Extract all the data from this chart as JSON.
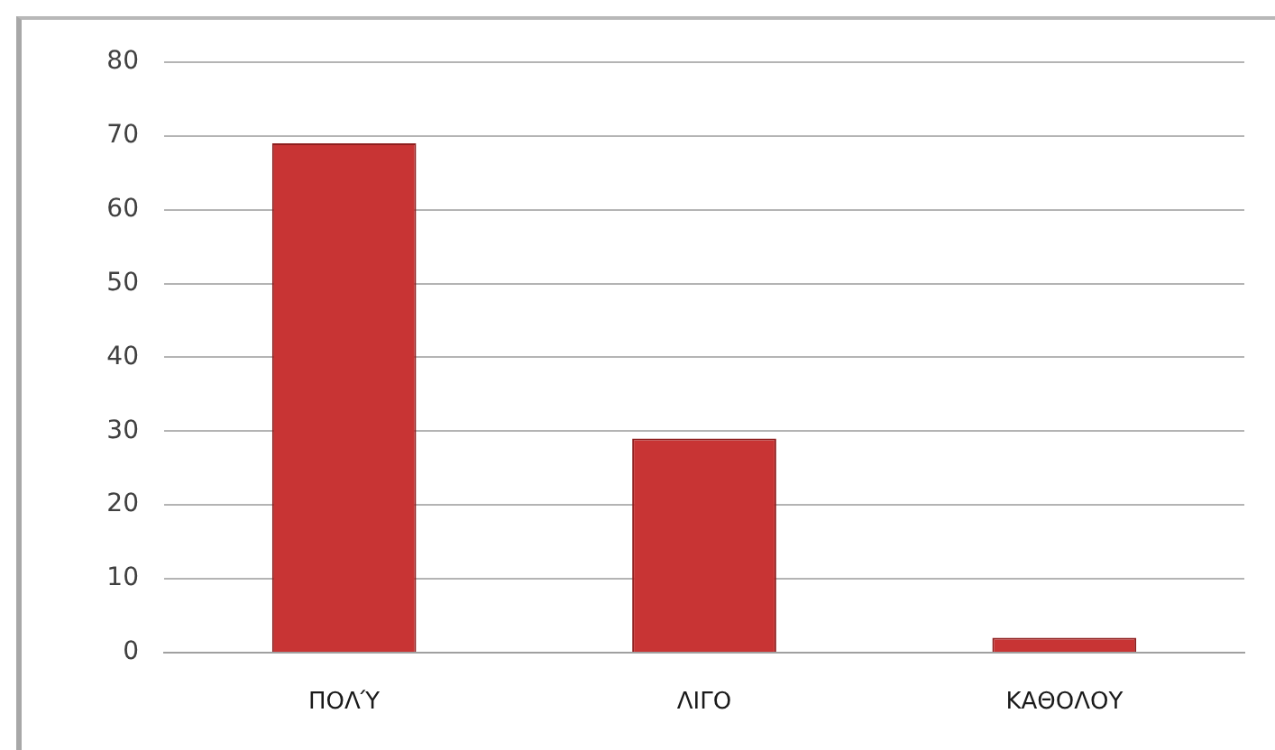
{
  "chart_data": {
    "type": "bar",
    "categories": [
      "ΠΟΛΎ",
      "ΛΙΓΟ",
      "ΚΑΘΟΛΟΥ"
    ],
    "values": [
      69,
      29,
      2
    ],
    "color": "#c83434",
    "ylim": [
      0,
      80
    ],
    "yticks": [
      0,
      10,
      20,
      30,
      40,
      50,
      60,
      70,
      80
    ],
    "grid": "y",
    "legend": false
  }
}
